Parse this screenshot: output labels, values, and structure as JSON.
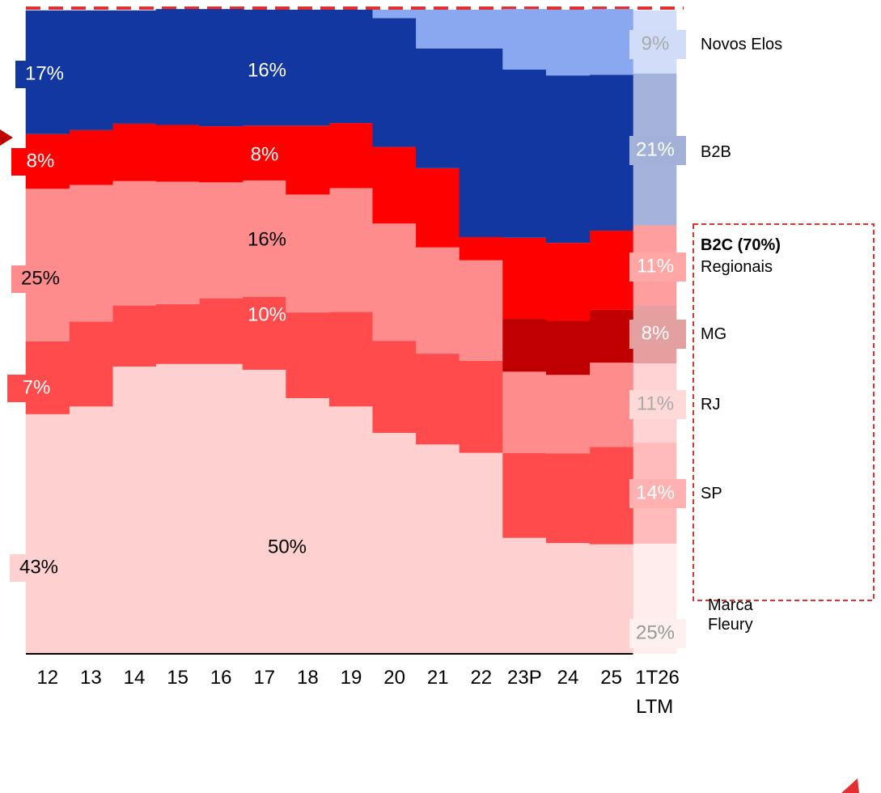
{
  "chart_data": {
    "type": "stacked-step-area",
    "categories": [
      "12",
      "13",
      "14",
      "15",
      "16",
      "17",
      "18",
      "19",
      "20",
      "21",
      "22",
      "23P",
      "24",
      "25",
      "1T26 LTM"
    ],
    "ylim": [
      0,
      100
    ],
    "series": [
      {
        "name": "Marca Fleury",
        "color": "#ffd0d0",
        "values": [
          37.2,
          38.4,
          44.6,
          45.0,
          45.0,
          44.1,
          39.7,
          38.4,
          34.3,
          32.5,
          31.2,
          18.0,
          17.2,
          17.0,
          17.1
        ]
      },
      {
        "name": "SP",
        "color": "#ff4b4b",
        "values": [
          11.3,
          13.2,
          9.5,
          9.3,
          10.2,
          11.3,
          13.3,
          14.7,
          14.3,
          14.1,
          14.3,
          13.2,
          13.9,
          15.1,
          15.7
        ]
      },
      {
        "name": "RJ",
        "color": "#ff8c8c",
        "values": [
          23.7,
          21.2,
          19.3,
          19.0,
          18.0,
          18.1,
          18.3,
          19.2,
          18.2,
          16.5,
          15.6,
          12.6,
          12.2,
          13.1,
          12.3
        ]
      },
      {
        "name": "MG",
        "color": "#c00000",
        "values": [
          0,
          0,
          0,
          0,
          0,
          0,
          0,
          0,
          0,
          0,
          0,
          8.2,
          8.4,
          8.2,
          9.0
        ]
      },
      {
        "name": "Regionais",
        "color": "#ff0000",
        "values": [
          8.5,
          8.5,
          8.9,
          8.8,
          8.7,
          8.5,
          10.7,
          10.1,
          11.9,
          12.3,
          3.6,
          12.6,
          12.1,
          12.3,
          12.4
        ]
      },
      {
        "name": "B2B",
        "color": "#1237a0",
        "values": [
          19.2,
          18.6,
          17.6,
          18.0,
          18.2,
          18.0,
          18.0,
          17.6,
          20.0,
          18.6,
          29.3,
          26.1,
          26.0,
          24.2,
          23.6
        ]
      },
      {
        "name": "Novos Elos",
        "color": "#8aa8f0",
        "values": [
          0,
          0,
          0,
          0,
          0,
          0,
          0,
          0,
          1.3,
          6.0,
          6.0,
          9.4,
          10.2,
          10.2,
          9.8
        ]
      }
    ],
    "annotations": [
      "17%",
      "16%",
      "8%",
      "8%",
      "25%",
      "16%",
      "10%",
      "7%",
      "50%",
      "43%"
    ],
    "ltm_labels": [
      "25%",
      "14%",
      "11%",
      "8%",
      "11%",
      "21%",
      "9%"
    ],
    "group_label": "B2C (70%)"
  }
}
